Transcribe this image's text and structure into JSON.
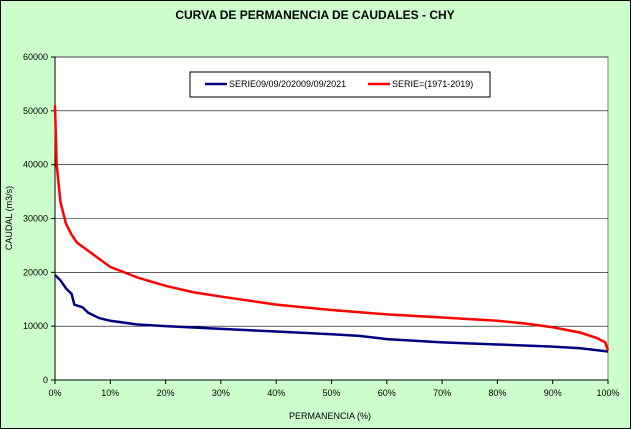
{
  "chart_data": {
    "type": "line",
    "title": "CURVA DE PERMANENCIA DE CAUDALES - CHY",
    "x_label": "PERMANENCIA (%)",
    "y_label": "CAUDAL (m3/s)",
    "xlim": [
      0,
      100
    ],
    "xticks": [
      {
        "value": 0,
        "label": "0%"
      },
      {
        "value": 10,
        "label": "10%"
      },
      {
        "value": 20,
        "label": "20%"
      },
      {
        "value": 30,
        "label": "30%"
      },
      {
        "value": 40,
        "label": "40%"
      },
      {
        "value": 50,
        "label": "50%"
      },
      {
        "value": 60,
        "label": "60%"
      },
      {
        "value": 70,
        "label": "70%"
      },
      {
        "value": 80,
        "label": "80%"
      },
      {
        "value": 90,
        "label": "90%"
      },
      {
        "value": 100,
        "label": "100%"
      }
    ],
    "ylim": [
      0,
      60000
    ],
    "yticks": [
      0,
      10000,
      20000,
      30000,
      40000,
      50000,
      60000
    ],
    "grid": true,
    "legend": "top",
    "series": [
      {
        "name": "SERIE09/09/202009/09/2021",
        "color": "#000080",
        "x": [
          0,
          1,
          2,
          3,
          3.5,
          5,
          6,
          8,
          10,
          15,
          20,
          30,
          40,
          50,
          55,
          60,
          70,
          80,
          90,
          95,
          100
        ],
        "values": [
          19500,
          18500,
          17000,
          16000,
          14000,
          13500,
          12500,
          11500,
          11000,
          10300,
          10000,
          9500,
          9000,
          8500,
          8200,
          7600,
          7000,
          6600,
          6200,
          5900,
          5300
        ]
      },
      {
        "name": "SERIE=(1971-2019)",
        "color": "#ff0000",
        "x": [
          0,
          0.3,
          1,
          2,
          3,
          4,
          6,
          8,
          10,
          15,
          20,
          25,
          30,
          40,
          50,
          60,
          70,
          80,
          85,
          90,
          95,
          98,
          99.5,
          100
        ],
        "values": [
          51000,
          40000,
          33000,
          29000,
          27000,
          25500,
          24000,
          22500,
          21000,
          19000,
          17500,
          16300,
          15500,
          14000,
          13000,
          12200,
          11600,
          11000,
          10500,
          9800,
          8800,
          7800,
          7000,
          5500
        ]
      }
    ]
  }
}
